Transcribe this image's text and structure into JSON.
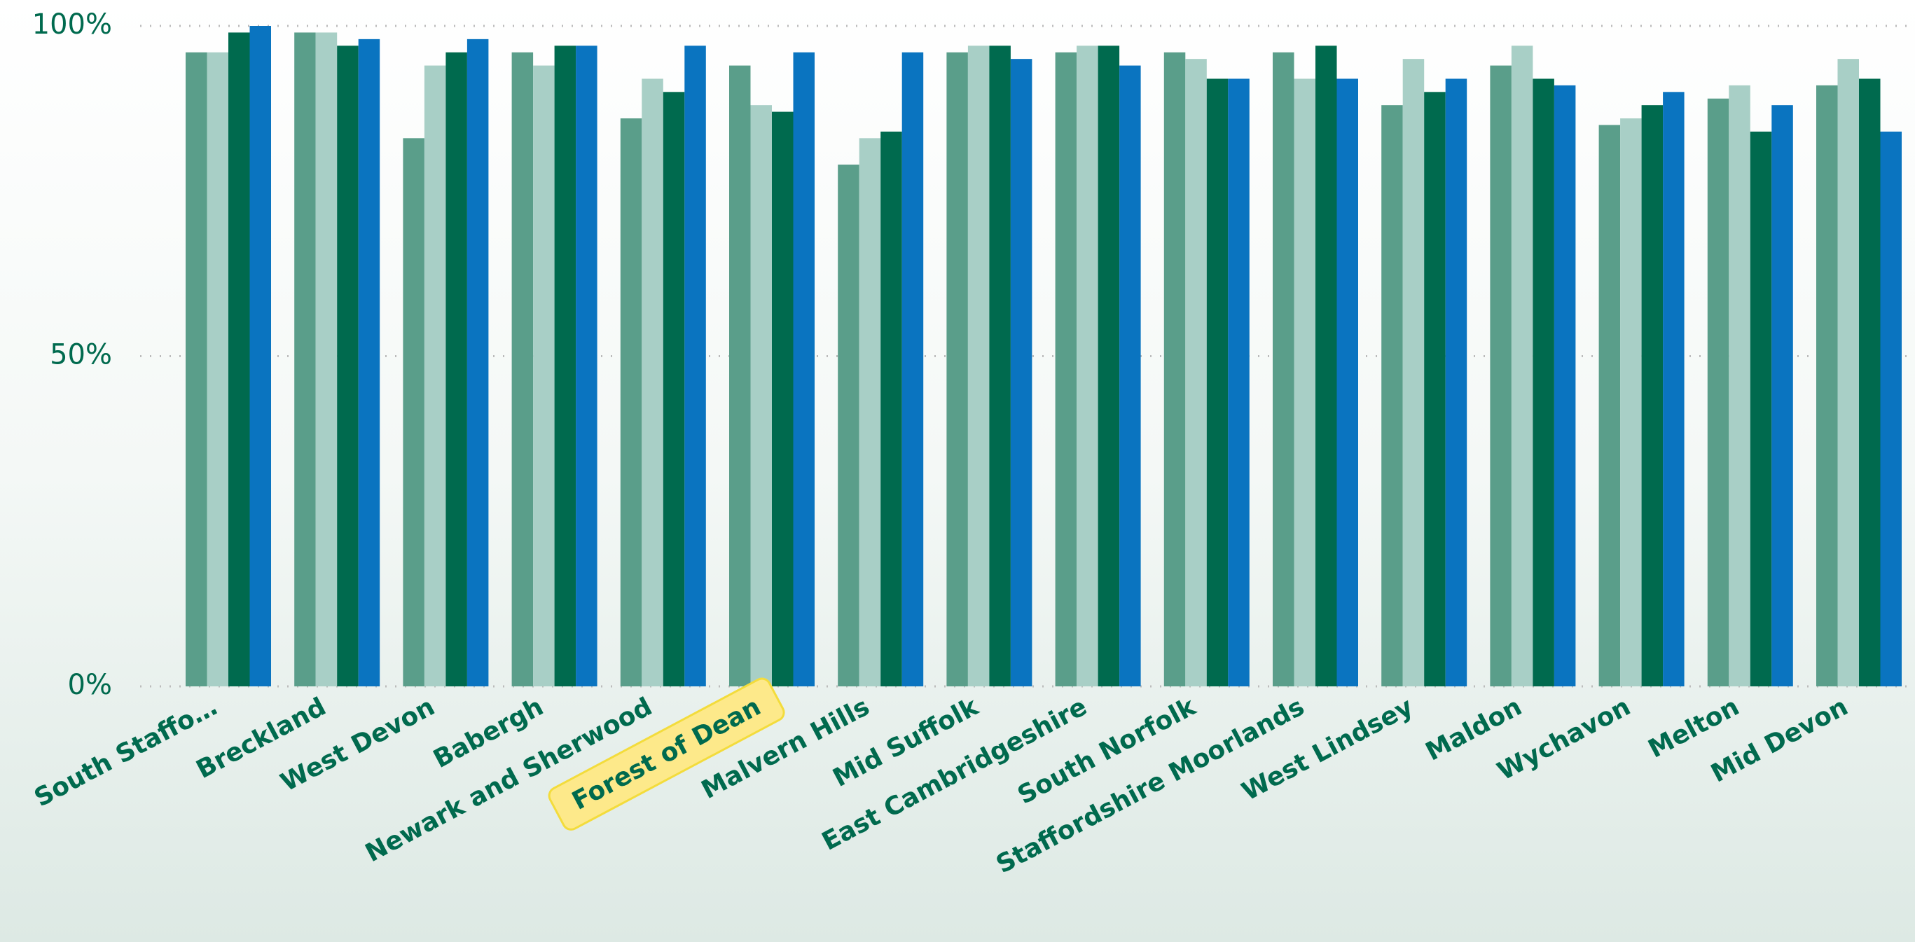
{
  "chart_data": {
    "type": "bar",
    "categories": [
      "South Staffo…",
      "Breckland",
      "West Devon",
      "Babergh",
      "Newark and Sherwood",
      "Forest of Dean",
      "Malvern Hills",
      "Mid Suffolk",
      "East Cambridgeshire",
      "South Norfolk",
      "Staffordshire Moorlands",
      "West Lindsey",
      "Maldon",
      "Wychavon",
      "Melton",
      "Mid Devon"
    ],
    "series": [
      {
        "color": "#5a9e8a",
        "values": [
          96,
          99,
          83,
          96,
          86,
          94,
          79,
          96,
          96,
          96,
          96,
          88,
          94,
          85,
          89,
          91
        ]
      },
      {
        "color": "#a8cfc6",
        "values": [
          96,
          99,
          94,
          94,
          92,
          88,
          83,
          97,
          97,
          95,
          92,
          95,
          97,
          86,
          91,
          95
        ]
      },
      {
        "color": "#006a4e",
        "values": [
          99,
          97,
          96,
          97,
          90,
          87,
          84,
          97,
          97,
          92,
          97,
          90,
          92,
          88,
          84,
          92
        ]
      },
      {
        "color": "#0a74c0",
        "values": [
          100,
          98,
          98,
          97,
          97,
          96,
          96,
          95,
          94,
          92,
          92,
          92,
          91,
          90,
          88,
          84
        ]
      }
    ],
    "ylim": [
      0,
      100
    ],
    "yticks": [
      {
        "value": 0,
        "label": "0%"
      },
      {
        "value": 50,
        "label": "50%"
      },
      {
        "value": 100,
        "label": "100%"
      }
    ],
    "grid": true,
    "highlighted_category": 5,
    "highlight_color": "#fde98a"
  }
}
